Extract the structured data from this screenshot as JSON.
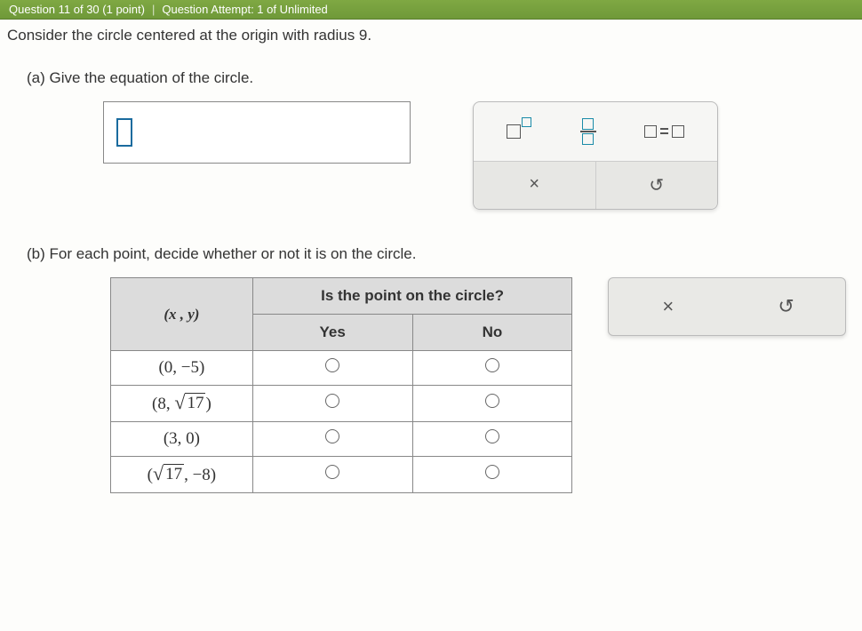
{
  "topbar": {
    "left": "Question 11 of 30 (1 point)",
    "right": "Question Attempt: 1 of Unlimited"
  },
  "prompt": "Consider the circle centered at the origin with radius 9.",
  "partA": {
    "label": "(a) Give the equation of the circle."
  },
  "toolbox": {
    "clear": "×",
    "undo": "↺"
  },
  "partB": {
    "label": "(b) For each point, decide whether or not it is on the circle.",
    "table": {
      "xy_header": "(x , y)",
      "question_header": "Is the point on the circle?",
      "yes": "Yes",
      "no": "No",
      "rows": [
        {
          "display": "(0, −5)",
          "plain": true
        },
        {
          "display_prefix": "(8, ",
          "sqrt_arg": "17",
          "display_suffix": ")"
        },
        {
          "display": "(3, 0)",
          "plain": true
        },
        {
          "display_prefix": "(",
          "sqrt_arg": "17",
          "display_suffix": ", −8)"
        }
      ]
    }
  },
  "side": {
    "clear": "×",
    "undo": "↺"
  },
  "colors": {
    "header_bg": "#dcdcdc",
    "border": "#888888",
    "accent": "#1a8ba8",
    "topbar_bg": "#6f9939"
  }
}
